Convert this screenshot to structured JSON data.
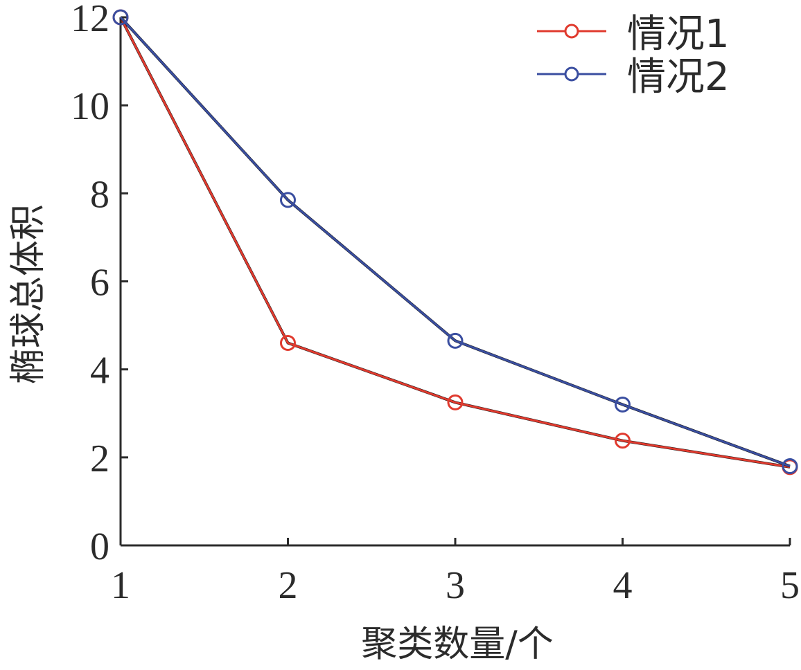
{
  "chart_data": {
    "type": "line",
    "title": "",
    "xlabel": "聚类数量/个",
    "ylabel": "椭球总体积",
    "x": [
      1,
      2,
      3,
      4,
      5
    ],
    "x_ticks": [
      "1",
      "2",
      "3",
      "4",
      "5"
    ],
    "xlim": [
      1,
      5
    ],
    "y_ticks": [
      "0",
      "2",
      "4",
      "6",
      "8",
      "10",
      "12"
    ],
    "ylim": [
      0,
      12
    ],
    "grid": false,
    "legend_position": "top-right",
    "series": [
      {
        "name": "情况1",
        "color": "#e03a2e",
        "marker": "circle",
        "values": [
          12.0,
          4.6,
          3.25,
          2.38,
          1.78
        ]
      },
      {
        "name": "情况2",
        "color": "#3a4ea0",
        "marker": "circle",
        "values": [
          12.0,
          7.85,
          4.65,
          3.2,
          1.8
        ]
      }
    ]
  }
}
